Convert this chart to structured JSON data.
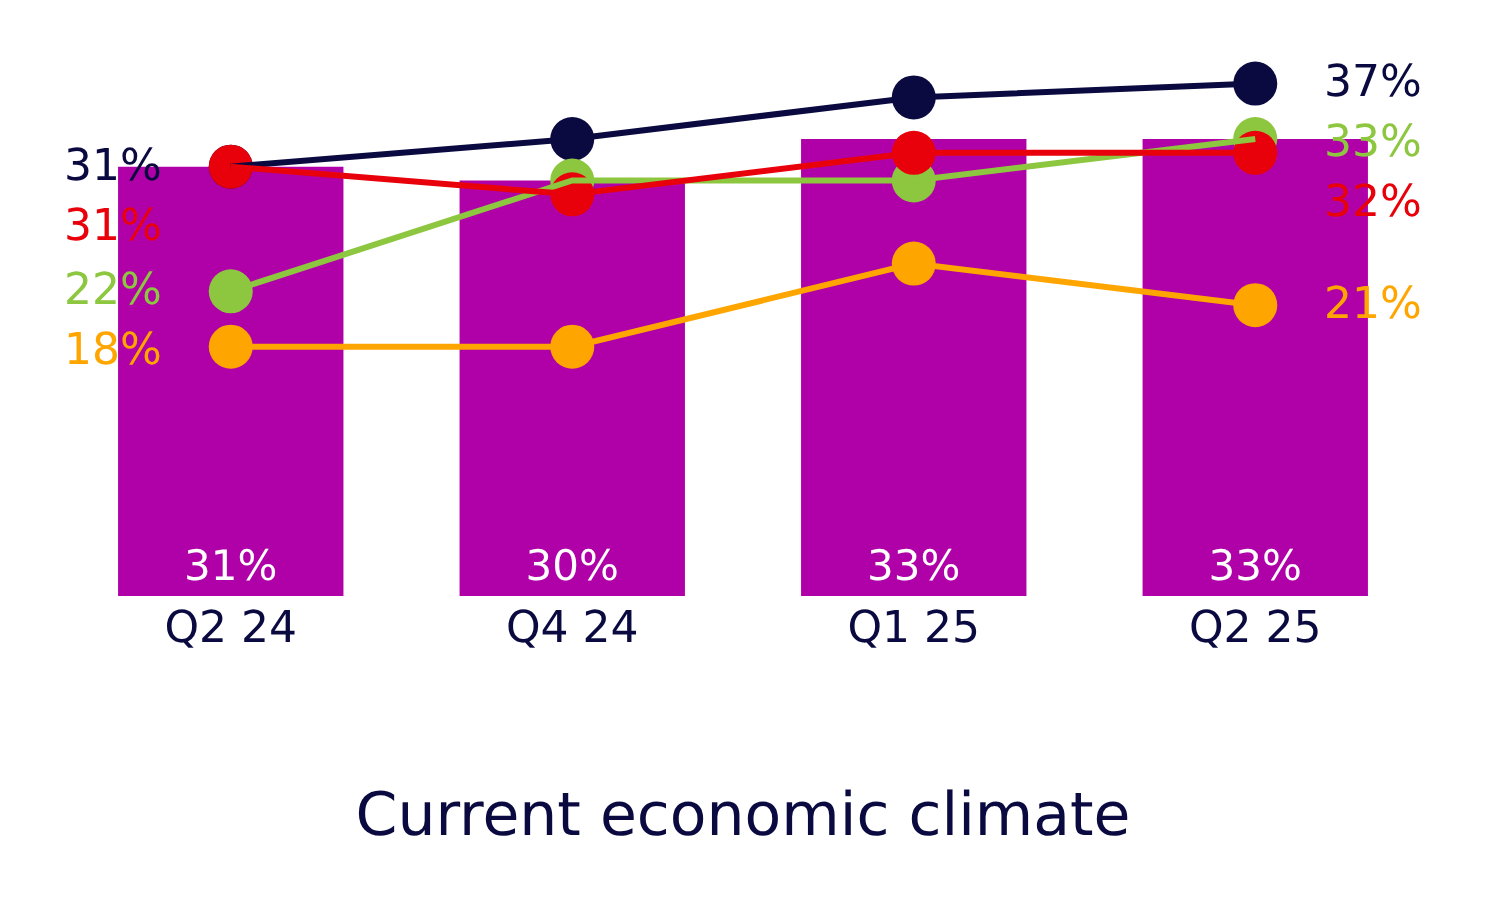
{
  "chart_data": {
    "type": "bar",
    "xlabel": "Current economic climate",
    "categories": [
      "Q2 24",
      "Q4 24",
      "Q1 25",
      "Q2 25"
    ],
    "marker": "circle",
    "series": [
      {
        "color": "#b000a8",
        "values": [
          31,
          30,
          33,
          33
        ],
        "value_labels": [
          "31%",
          "30%",
          "33%",
          "33%"
        ]
      },
      {
        "type": "line",
        "color": "#0a0a40",
        "values": [
          31,
          33,
          36,
          37
        ],
        "value_labels": [
          "31%",
          null,
          null,
          "37%"
        ]
      },
      {
        "type": "line",
        "color": "#8dc63f",
        "values": [
          22,
          30,
          30,
          33
        ],
        "value_labels": [
          "22%",
          null,
          null,
          "33%"
        ]
      },
      {
        "type": "line",
        "color": "#ffa500",
        "values": [
          18,
          18,
          24,
          21
        ],
        "value_labels": [
          "18%",
          null,
          null,
          "21%"
        ]
      },
      {
        "type": "line",
        "color": "#e8000b",
        "values": [
          31,
          29,
          32,
          32
        ],
        "value_labels": [
          "31%",
          null,
          null,
          "32%"
        ]
      }
    ]
  }
}
